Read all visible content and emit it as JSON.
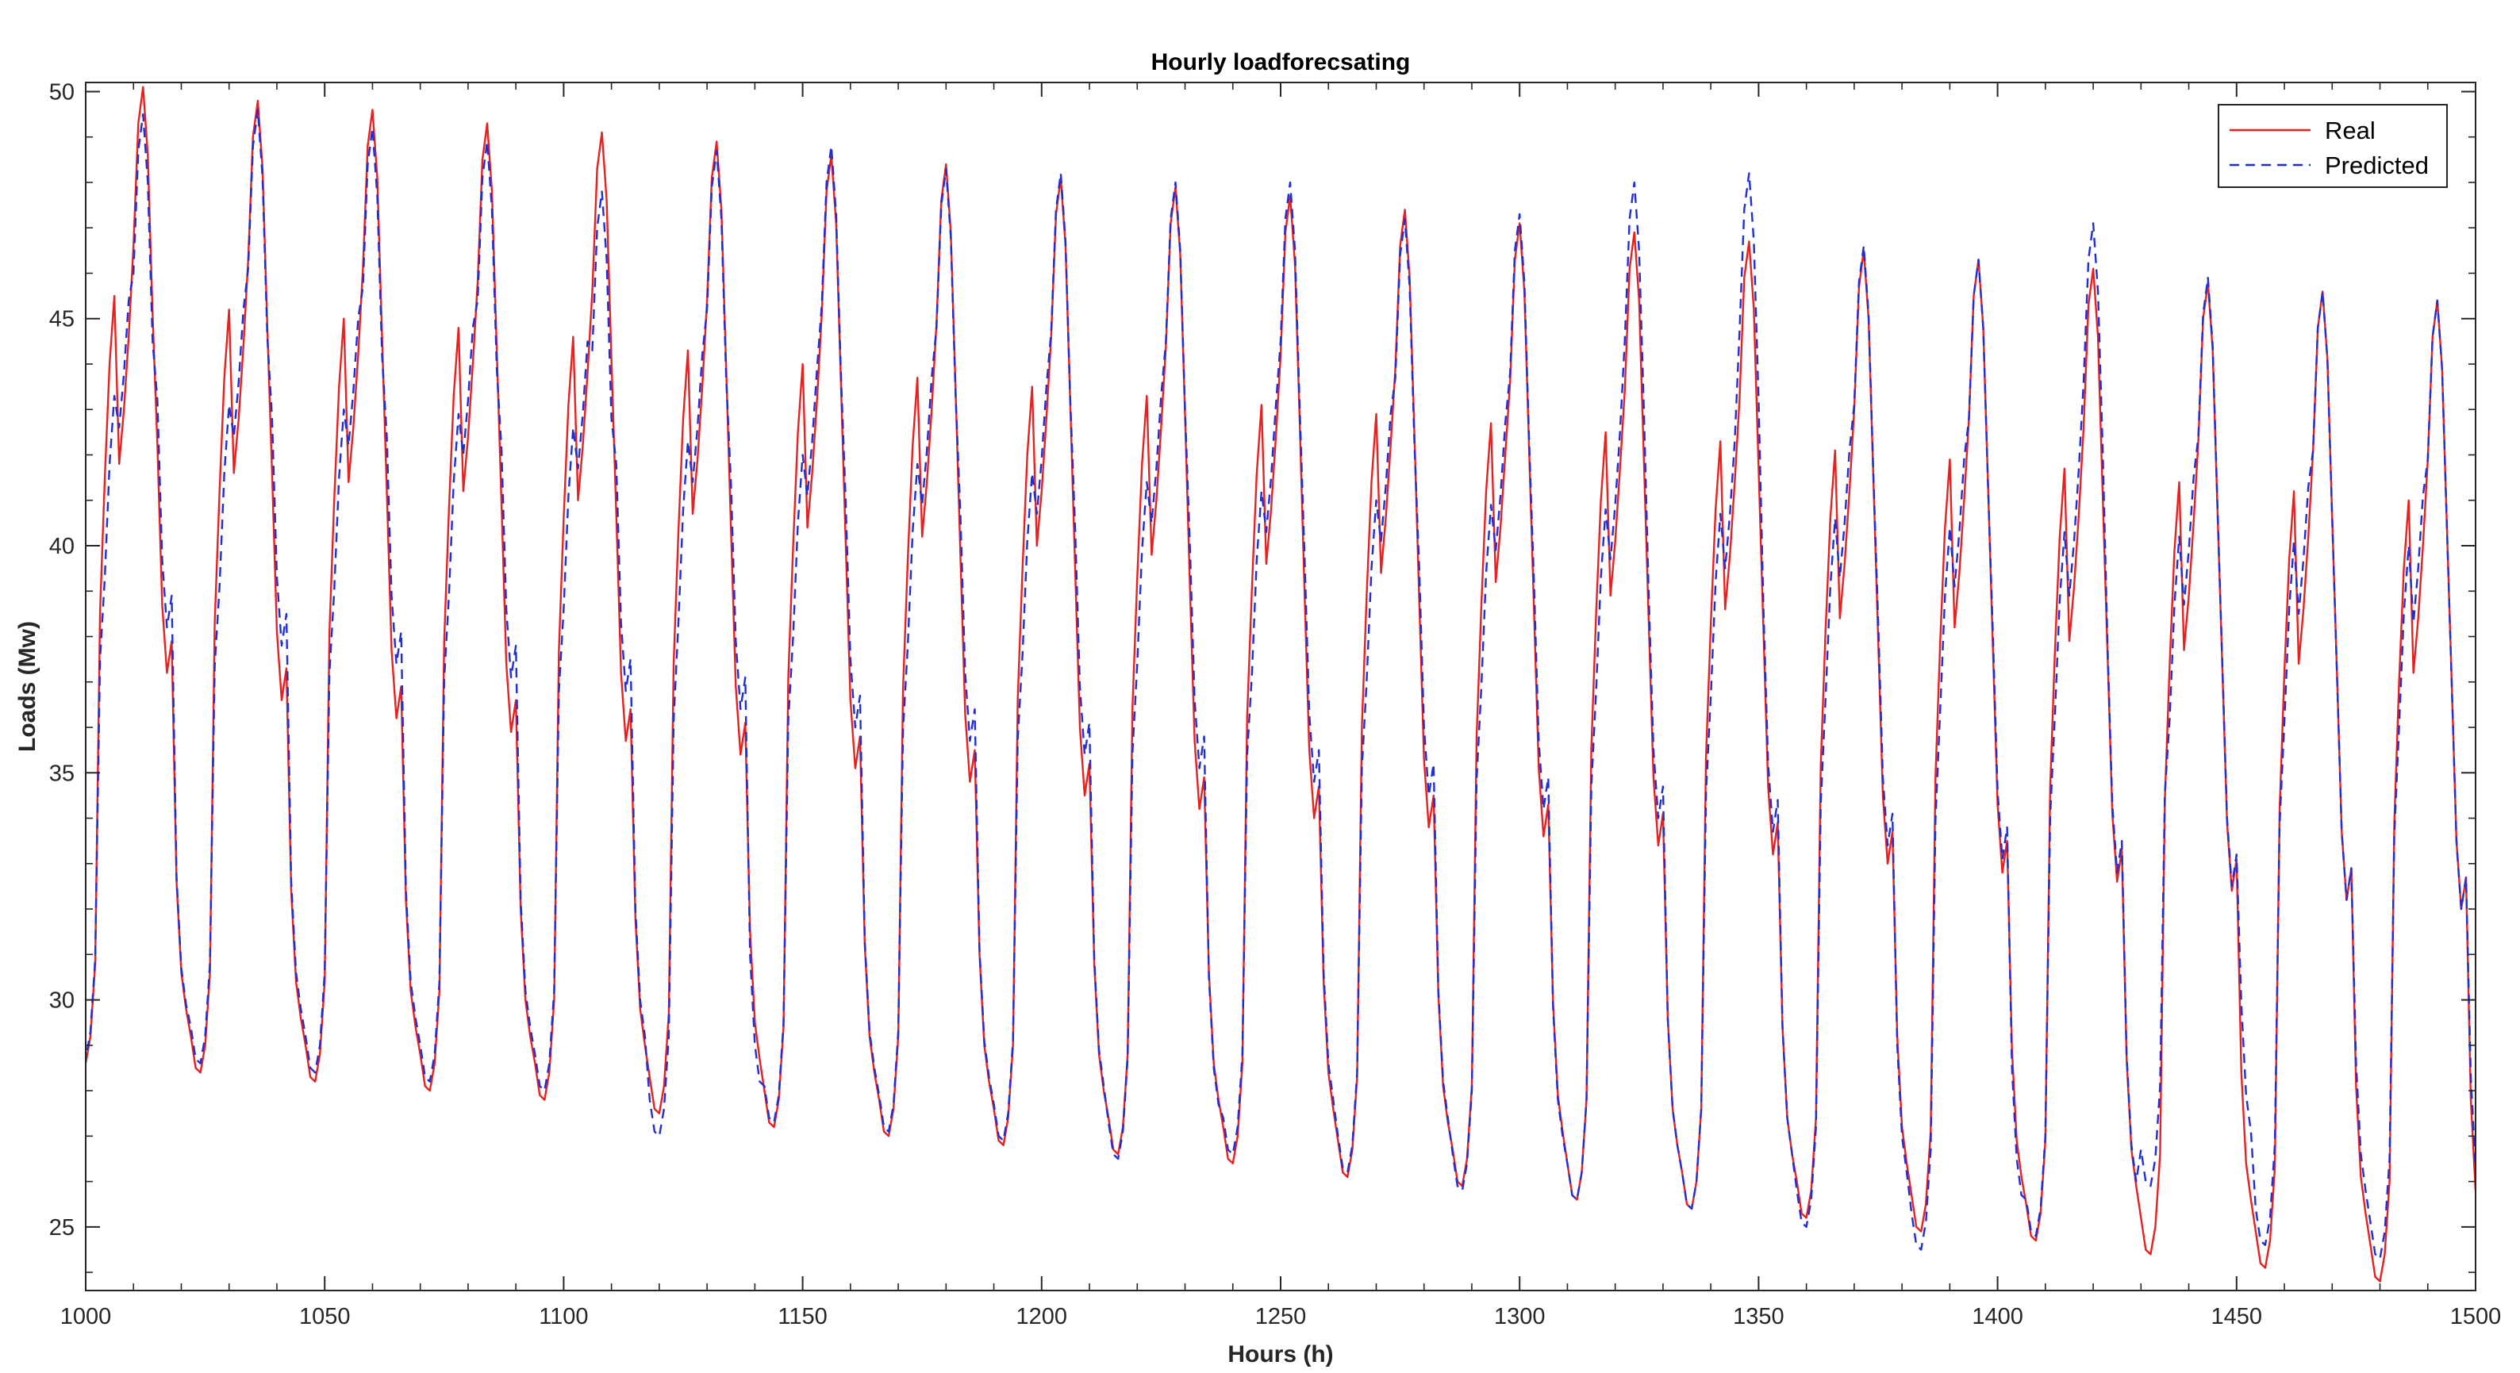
{
  "chart_data": {
    "type": "line",
    "title": "Hourly loadforecsating",
    "xlabel": "Hours (h)",
    "ylabel": "Loads (Mw)",
    "xlim": [
      1000,
      1500
    ],
    "ylim": [
      23.6,
      50.2
    ],
    "x_ticks": [
      1000,
      1050,
      1100,
      1150,
      1200,
      1250,
      1300,
      1350,
      1400,
      1450,
      1500
    ],
    "y_ticks": [
      25,
      30,
      35,
      40,
      45,
      50
    ],
    "x_tick_labels": [
      "1000",
      "1050",
      "1100",
      "1150",
      "1200",
      "1250",
      "1300",
      "1350",
      "1400",
      "1450",
      "1500"
    ],
    "y_tick_labels": [
      "25",
      "30",
      "35",
      "40",
      "45",
      "50"
    ],
    "legend_position": "top-right",
    "period_hours": 24,
    "series": [
      {
        "name": "Real",
        "color": "#e8201f",
        "line_style": "solid",
        "note": "Hourly load, daily cycle; one entry per day: [day_start_hour, night_min, morning_value, midday_dip, afternoon_peak, evening_drop]",
        "daily": [
          [
            998,
            28.6,
            45.5,
            41.8,
            50.1,
            37.2
          ],
          [
            1022,
            28.4,
            45.2,
            41.6,
            49.8,
            36.6
          ],
          [
            1046,
            28.2,
            45.0,
            41.4,
            49.6,
            36.2
          ],
          [
            1070,
            28.0,
            44.8,
            41.2,
            49.3,
            35.9
          ],
          [
            1094,
            27.8,
            44.6,
            41.0,
            49.1,
            35.7
          ],
          [
            1118,
            27.5,
            44.3,
            40.7,
            48.9,
            35.4
          ],
          [
            1142,
            27.2,
            44.0,
            40.4,
            48.6,
            35.1
          ],
          [
            1166,
            27.0,
            43.7,
            40.2,
            48.4,
            34.8
          ],
          [
            1190,
            26.8,
            43.5,
            40.0,
            48.1,
            34.5
          ],
          [
            1214,
            26.6,
            43.3,
            39.8,
            47.9,
            34.2
          ],
          [
            1238,
            26.4,
            43.1,
            39.6,
            47.7,
            34.0
          ],
          [
            1262,
            26.1,
            42.9,
            39.4,
            47.4,
            33.8
          ],
          [
            1286,
            25.9,
            42.7,
            39.2,
            47.1,
            33.6
          ],
          [
            1310,
            25.6,
            42.5,
            38.9,
            46.9,
            33.4
          ],
          [
            1334,
            25.4,
            42.3,
            38.6,
            46.7,
            33.2
          ],
          [
            1358,
            25.2,
            42.1,
            38.4,
            46.5,
            33.0
          ],
          [
            1382,
            24.9,
            41.9,
            38.2,
            46.3,
            32.8
          ],
          [
            1406,
            24.7,
            41.7,
            37.9,
            46.1,
            32.6
          ],
          [
            1430,
            24.4,
            41.4,
            37.7,
            45.8,
            32.4
          ],
          [
            1454,
            24.1,
            41.2,
            37.4,
            45.6,
            32.2
          ],
          [
            1478,
            23.8,
            41.0,
            37.2,
            45.4,
            32.0
          ]
        ]
      },
      {
        "name": "Predicted",
        "color": "#1f2fd4",
        "line_style": "dashed",
        "note": "Forecast; one entry per day: [day_start_hour, night_min, morning_value, midday_dip, afternoon_peak, evening_drop]",
        "daily": [
          [
            998,
            28.7,
            43.3,
            42.6,
            49.5,
            38.2
          ],
          [
            1022,
            28.6,
            43.1,
            42.4,
            49.6,
            37.8
          ],
          [
            1046,
            28.4,
            43.0,
            42.2,
            49.2,
            37.4
          ],
          [
            1070,
            28.2,
            42.9,
            42.0,
            48.9,
            37.1
          ],
          [
            1094,
            28.0,
            42.6,
            41.7,
            47.8,
            36.8
          ],
          [
            1118,
            27.0,
            42.3,
            41.4,
            48.7,
            36.4
          ],
          [
            1142,
            27.3,
            42.0,
            41.1,
            48.8,
            36.0
          ],
          [
            1166,
            27.1,
            41.8,
            40.9,
            48.3,
            35.7
          ],
          [
            1190,
            26.9,
            41.6,
            40.7,
            48.2,
            35.4
          ],
          [
            1214,
            26.5,
            41.4,
            40.5,
            48.0,
            35.1
          ],
          [
            1238,
            26.6,
            41.2,
            40.3,
            48.0,
            34.8
          ],
          [
            1262,
            26.2,
            41.0,
            40.1,
            47.2,
            34.5
          ],
          [
            1286,
            25.8,
            40.9,
            39.9,
            47.3,
            34.2
          ],
          [
            1310,
            25.6,
            40.8,
            39.7,
            48.0,
            34.0
          ],
          [
            1334,
            25.4,
            40.7,
            39.5,
            48.2,
            33.7
          ],
          [
            1358,
            25.0,
            40.6,
            39.3,
            46.6,
            33.4
          ],
          [
            1382,
            24.5,
            40.4,
            39.1,
            46.3,
            33.1
          ],
          [
            1406,
            24.8,
            40.3,
            38.9,
            47.1,
            32.8
          ],
          [
            1430,
            25.9,
            40.2,
            38.7,
            45.9,
            32.5
          ],
          [
            1454,
            24.6,
            40.1,
            38.5,
            45.6,
            32.2
          ],
          [
            1478,
            24.3,
            40.0,
            38.3,
            45.4,
            32.0
          ]
        ]
      }
    ]
  }
}
